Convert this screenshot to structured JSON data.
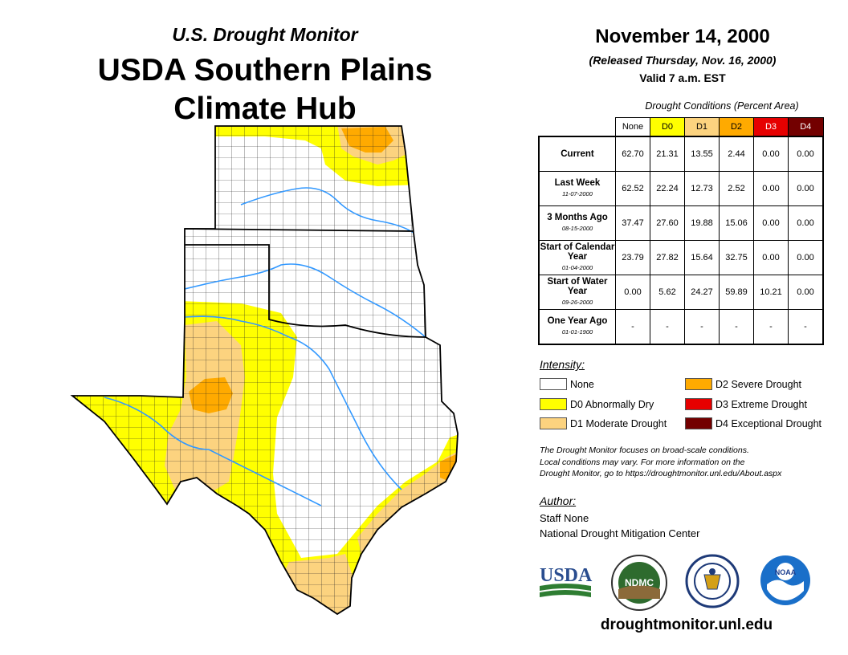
{
  "header": {
    "subtitle": "U.S. Drought Monitor",
    "title_line1": "USDA Southern Plains",
    "title_line2": "Climate Hub"
  },
  "report": {
    "date": "November 14, 2000",
    "released": "(Released Thursday, Nov. 16, 2000)",
    "valid": "Valid 7 a.m. EST"
  },
  "table": {
    "caption": "Drought Conditions (Percent Area)",
    "columns": [
      {
        "label": "None",
        "bg": "#ffffff",
        "fg": "#000000"
      },
      {
        "label": "D0",
        "bg": "#ffff00",
        "fg": "#000000"
      },
      {
        "label": "D1",
        "bg": "#fcd37f",
        "fg": "#000000"
      },
      {
        "label": "D2",
        "bg": "#ffaa00",
        "fg": "#000000"
      },
      {
        "label": "D3",
        "bg": "#e60000",
        "fg": "#ffffff"
      },
      {
        "label": "D4",
        "bg": "#730000",
        "fg": "#ffffff"
      }
    ],
    "rows": [
      {
        "label": "Current",
        "date": "",
        "values": [
          "62.70",
          "21.31",
          "13.55",
          "2.44",
          "0.00",
          "0.00"
        ]
      },
      {
        "label": "Last Week",
        "date": "11-07-2000",
        "values": [
          "62.52",
          "22.24",
          "12.73",
          "2.52",
          "0.00",
          "0.00"
        ]
      },
      {
        "label": "3 Months Ago",
        "date": "08-15-2000",
        "values": [
          "37.47",
          "27.60",
          "19.88",
          "15.06",
          "0.00",
          "0.00"
        ]
      },
      {
        "label": "Start of Calendar Year",
        "date": "01-04-2000",
        "values": [
          "23.79",
          "27.82",
          "15.64",
          "32.75",
          "0.00",
          "0.00"
        ]
      },
      {
        "label": "Start of Water Year",
        "date": "09-26-2000",
        "values": [
          "0.00",
          "5.62",
          "24.27",
          "59.89",
          "10.21",
          "0.00"
        ]
      },
      {
        "label": "One Year Ago",
        "date": "01-01-1900",
        "values": [
          "-",
          "-",
          "-",
          "-",
          "-",
          "-"
        ]
      }
    ]
  },
  "legend": {
    "title": "Intensity:",
    "items": [
      {
        "label": "None",
        "color": "#ffffff"
      },
      {
        "label": "D0 Abnormally Dry",
        "color": "#ffff00"
      },
      {
        "label": "D1 Moderate Drought",
        "color": "#fcd37f"
      },
      {
        "label": "D2 Severe Drought",
        "color": "#ffaa00"
      },
      {
        "label": "D3 Extreme Drought",
        "color": "#e60000"
      },
      {
        "label": "D4 Exceptional Drought",
        "color": "#730000"
      }
    ]
  },
  "note": {
    "line1": "The Drought Monitor focuses on broad-scale conditions.",
    "line2": "Local conditions may vary. For more information on the",
    "line3": "Drought Monitor, go to https://droughtmonitor.unl.edu/About.aspx"
  },
  "author": {
    "title": "Author:",
    "name": "Staff None",
    "org": "National Drought Mitigation Center"
  },
  "logos": {
    "usda": "USDA",
    "ndmc": "NDMC",
    "noaa": "NOAA"
  },
  "footer": {
    "website": "droughtmonitor.unl.edu"
  }
}
